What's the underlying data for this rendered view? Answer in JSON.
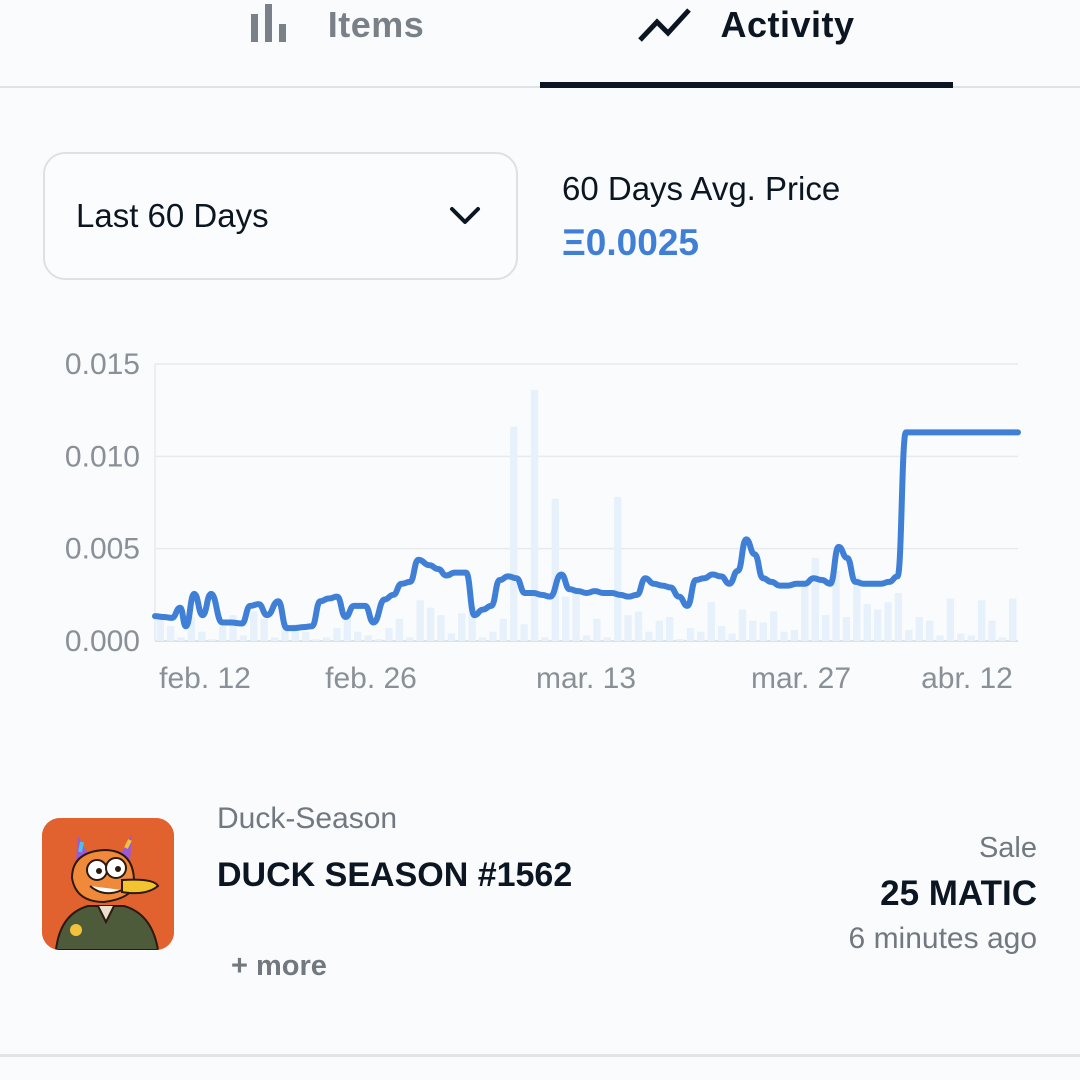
{
  "tabs": [
    {
      "label": "Items",
      "icon": "bar-chart-icon",
      "active": false
    },
    {
      "label": "Activity",
      "icon": "trend-line-icon",
      "active": true
    }
  ],
  "filter": {
    "selected": "Last 60 Days",
    "icon": "chevron-down-icon"
  },
  "stats": {
    "avg_label": "60 Days Avg. Price",
    "avg_value": "Ξ0.0025"
  },
  "colors": {
    "accent": "#3f7fd5",
    "text": "#0c1623",
    "muted": "#72787f",
    "volume": "#e6f1fb",
    "thumb_bg": "#e2622f"
  },
  "chart_data": {
    "type": "line",
    "y_ticks": [
      "0.015",
      "0.010",
      "0.005",
      "0.000"
    ],
    "x_ticks": [
      "feb. 12",
      "feb. 26",
      "mar. 13",
      "mar. 27",
      "abr. 12"
    ],
    "ylim": [
      0,
      0.015
    ],
    "grid": true,
    "series": [
      {
        "kind": "line",
        "x": [
          0,
          3,
          6,
          9,
          11,
          14,
          17,
          20,
          24,
          27,
          31,
          34,
          37,
          40,
          44,
          47,
          50,
          53,
          56,
          59,
          62,
          65,
          68,
          71,
          75,
          78,
          82,
          85,
          88,
          91,
          94,
          98,
          101,
          104,
          107,
          111,
          114,
          117,
          120,
          123,
          126,
          129,
          132,
          135,
          138,
          141,
          145,
          148,
          151,
          154,
          157,
          160,
          163,
          166,
          169,
          172,
          175,
          178,
          181,
          184,
          187,
          190,
          193,
          196,
          199,
          202,
          205,
          208,
          211,
          214,
          217,
          220,
          223,
          226,
          229,
          232,
          235,
          238,
          241,
          244,
          247,
          250,
          253,
          256,
          259,
          262,
          265,
          268,
          271,
          274,
          277,
          280,
          283,
          286,
          289,
          292,
          295,
          298,
          301,
          305,
          308
        ],
        "values": [
          0.00135,
          0.0013,
          0.00125,
          0.0018,
          0.0008,
          0.00255,
          0.0014,
          0.00255,
          0.001,
          0.001,
          0.00095,
          0.0019,
          0.002,
          0.0014,
          0.00215,
          0.0007,
          0.0007,
          0.00075,
          0.0008,
          0.00215,
          0.0023,
          0.0024,
          0.0013,
          0.0019,
          0.0019,
          0.001,
          0.00225,
          0.0025,
          0.0031,
          0.0032,
          0.0044,
          0.0041,
          0.0039,
          0.00355,
          0.0037,
          0.0037,
          0.0014,
          0.0017,
          0.0019,
          0.0033,
          0.0035,
          0.0034,
          0.0026,
          0.0026,
          0.0025,
          0.0024,
          0.0036,
          0.0028,
          0.0027,
          0.0026,
          0.0027,
          0.0026,
          0.0026,
          0.0025,
          0.0024,
          0.0025,
          0.0034,
          0.0031,
          0.003,
          0.0029,
          0.0024,
          0.0019,
          0.0033,
          0.0034,
          0.0036,
          0.0035,
          0.0031,
          0.0038,
          0.0055,
          0.0047,
          0.0034,
          0.0032,
          0.003,
          0.003,
          0.0031,
          0.0031,
          0.0034,
          0.0033,
          0.0031,
          0.0051,
          0.0045,
          0.0032,
          0.0031,
          0.0031,
          0.0031,
          0.0032,
          0.0035,
          0.0113,
          0.0113,
          0.0113,
          0.0113,
          0.0113,
          0.0113,
          0.0113,
          0.0113,
          0.0113,
          0.0113,
          0.0113,
          0.0113,
          0.0113,
          0.0113
        ]
      },
      {
        "kind": "bar",
        "values": [
          0.0012,
          0.0008,
          0.0002,
          0.0013,
          0.0005,
          0.0001,
          0.0008,
          0.0014,
          0.0003,
          0.0016,
          0.0012,
          0.0002,
          0.001,
          0.0009,
          0.0005,
          0.0001,
          0.0002,
          0.0007,
          0.0016,
          0.0005,
          0.0003,
          0.0001,
          0.0007,
          0.0012,
          0.0002,
          0.0022,
          0.0018,
          0.0014,
          0.0004,
          0.0015,
          0.0019,
          0.0002,
          0.0005,
          0.0012,
          0.0116,
          0.0009,
          0.0136,
          0.0002,
          0.0077,
          0.0024,
          0.0026,
          0.0003,
          0.0012,
          0.0002,
          0.0078,
          0.0014,
          0.0016,
          0.0005,
          0.0011,
          0.0013,
          0.0001,
          0.0007,
          0.0005,
          0.0021,
          0.0008,
          0.0004,
          0.0017,
          0.0011,
          0.001,
          0.0016,
          0.0005,
          0.0006,
          0.0032,
          0.0045,
          0.0014,
          0.0038,
          0.0013,
          0.0035,
          0.002,
          0.0017,
          0.0021,
          0.0026,
          0.0006,
          0.0013,
          0.0011,
          0.0003,
          0.0023,
          0.0004,
          0.0003,
          0.0022,
          0.0011,
          0.0002,
          0.0023
        ]
      }
    ]
  },
  "activity": {
    "collection": "Duck-Season",
    "item_name": "DUCK SEASON #1562",
    "more_label": "+ more",
    "event_type": "Sale",
    "price": "25 MATIC",
    "time": "6 minutes ago"
  }
}
